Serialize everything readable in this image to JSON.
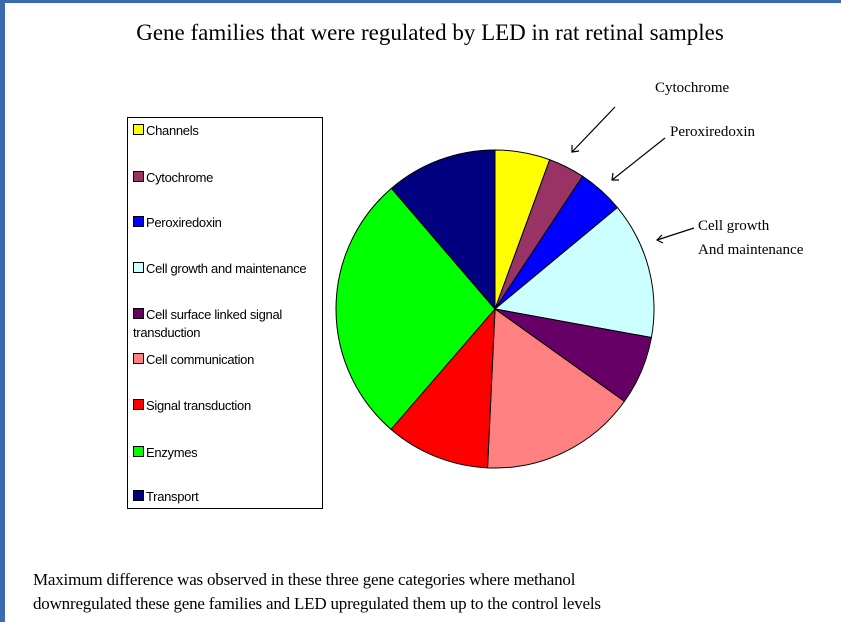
{
  "chart_data": {
    "type": "pie",
    "title": "Gene families that were regulated by LED in rat retinal samples",
    "categories": [
      "Channels",
      "Cytochrome",
      "Peroxiredoxin",
      "Cell growth and maintenance",
      "Cell surface linked signal transduction",
      "Cell communication",
      "Signal transduction",
      "Enzymes",
      "Transport"
    ],
    "values": [
      5.6,
      3.7,
      4.7,
      13.9,
      7.0,
      15.9,
      10.6,
      27.4,
      11.3
    ],
    "colors": [
      "#ffff00",
      "#993366",
      "#0000ff",
      "#ccffff",
      "#660066",
      "#ff8080",
      "#ff0000",
      "#00ff00",
      "#000080"
    ],
    "annotations": [
      [
        "Cytochrome"
      ],
      [
        "Peroxiredoxin"
      ],
      [
        "Cell growth",
        "And maintenance"
      ]
    ],
    "note": [
      "Maximum difference was observed in these three gene categories where methanol",
      "downregulated these gene families and LED upregulated them up to the control levels"
    ]
  }
}
